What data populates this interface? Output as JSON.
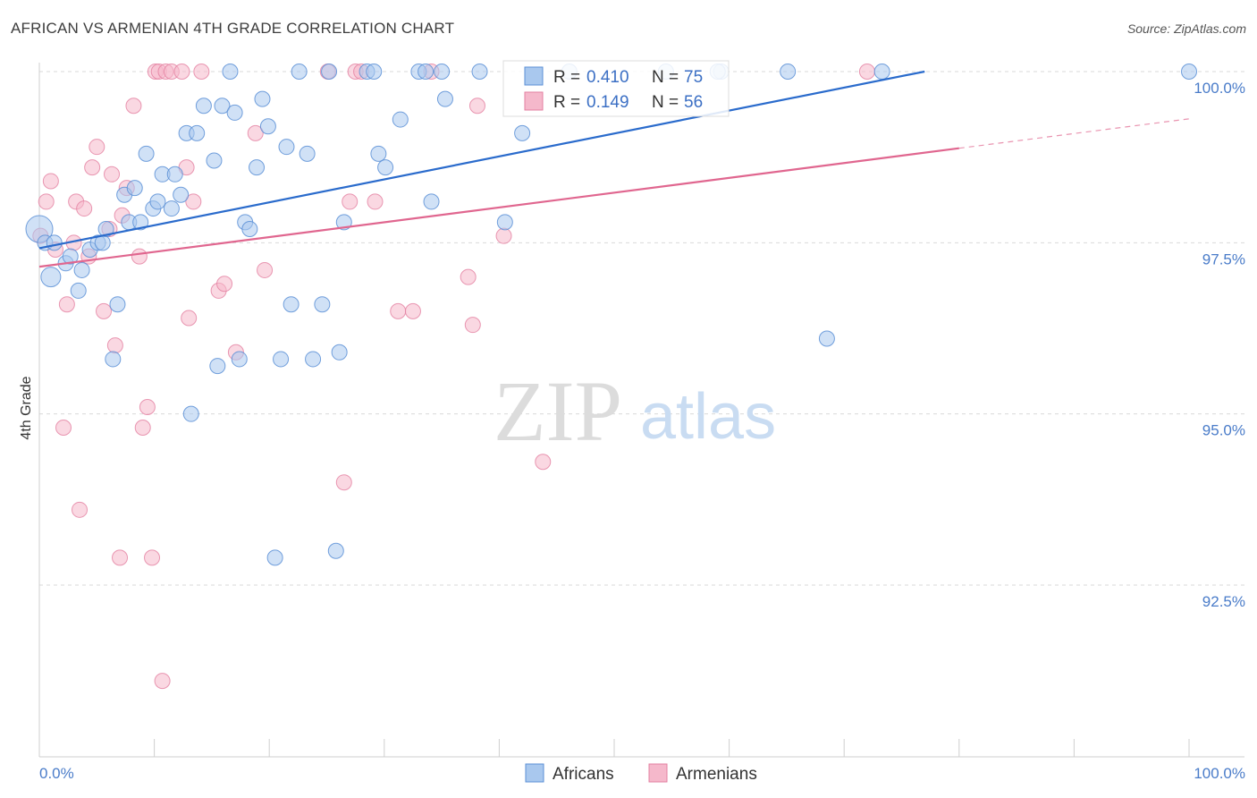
{
  "title": "AFRICAN VS ARMENIAN 4TH GRADE CORRELATION CHART",
  "source": "Source: ZipAtlas.com",
  "watermark": {
    "part1": "ZIP",
    "part2": "atlas"
  },
  "legend": {
    "series1": {
      "r_label": "R =",
      "r_value": "0.410",
      "n_label": "N =",
      "n_value": "75"
    },
    "series2": {
      "r_label": "R =",
      "r_value": "0.149",
      "n_label": "N =",
      "n_value": "56"
    }
  },
  "bottom_legend": [
    "Africans",
    "Armenians"
  ],
  "colors": {
    "blue_fill": "#a9c8ee",
    "blue_stroke": "#5b8fd6",
    "blue_line": "#2a6bcc",
    "pink_fill": "#f5b8cb",
    "pink_stroke": "#e37fa0",
    "pink_line": "#e0668f",
    "grid": "#d9d9d9",
    "tick_text": "#4a7cc9"
  },
  "chart_data": {
    "type": "scatter",
    "xlabel": "",
    "ylabel": "4th Grade",
    "xlim": [
      0,
      100
    ],
    "ylim": [
      90.0,
      100.5
    ],
    "x_tick_labels": [
      "0.0%",
      "100.0%"
    ],
    "y_ticks": [
      92.5,
      95.0,
      97.5,
      100.0
    ],
    "y_tick_labels": [
      "92.5%",
      "95.0%",
      "97.5%",
      "100.0%"
    ],
    "legend_position": "top-center",
    "grid": true,
    "series": [
      {
        "name": "Africans",
        "color": "#5b8fd6",
        "r": 0.41,
        "n": 75,
        "trend": {
          "x": [
            0,
            77
          ],
          "y": [
            97.42,
            100.0
          ]
        },
        "points": [
          [
            0.0,
            97.7
          ],
          [
            0.5,
            97.5
          ],
          [
            1.3,
            97.5
          ],
          [
            1.0,
            97.0
          ],
          [
            2.3,
            97.2
          ],
          [
            2.7,
            97.3
          ],
          [
            3.4,
            96.8
          ],
          [
            3.7,
            97.1
          ],
          [
            4.4,
            97.4
          ],
          [
            5.1,
            97.5
          ],
          [
            5.5,
            97.5
          ],
          [
            5.8,
            97.7
          ],
          [
            6.4,
            95.8
          ],
          [
            6.8,
            96.6
          ],
          [
            7.4,
            98.2
          ],
          [
            7.8,
            97.8
          ],
          [
            8.3,
            98.3
          ],
          [
            8.8,
            97.8
          ],
          [
            9.3,
            98.8
          ],
          [
            9.9,
            98.0
          ],
          [
            10.3,
            98.1
          ],
          [
            10.7,
            98.5
          ],
          [
            11.5,
            98.0
          ],
          [
            11.8,
            98.5
          ],
          [
            12.3,
            98.2
          ],
          [
            12.8,
            99.1
          ],
          [
            13.2,
            95.0
          ],
          [
            13.7,
            99.1
          ],
          [
            14.3,
            99.5
          ],
          [
            15.2,
            98.7
          ],
          [
            15.5,
            95.7
          ],
          [
            15.9,
            99.5
          ],
          [
            16.6,
            100.0
          ],
          [
            17.0,
            99.4
          ],
          [
            17.4,
            95.8
          ],
          [
            17.9,
            97.8
          ],
          [
            18.3,
            97.7
          ],
          [
            18.9,
            98.6
          ],
          [
            19.4,
            99.6
          ],
          [
            19.9,
            99.2
          ],
          [
            20.5,
            92.9
          ],
          [
            21.0,
            95.8
          ],
          [
            21.5,
            98.9
          ],
          [
            21.9,
            96.6
          ],
          [
            22.6,
            100.0
          ],
          [
            23.3,
            98.8
          ],
          [
            23.8,
            95.8
          ],
          [
            24.6,
            96.6
          ],
          [
            25.2,
            100.0
          ],
          [
            25.8,
            93.0
          ],
          [
            26.1,
            95.9
          ],
          [
            26.5,
            97.8
          ],
          [
            28.5,
            100.0
          ],
          [
            29.1,
            100.0
          ],
          [
            29.5,
            98.8
          ],
          [
            30.1,
            98.6
          ],
          [
            31.4,
            99.3
          ],
          [
            33.0,
            100.0
          ],
          [
            33.6,
            100.0
          ],
          [
            34.1,
            98.1
          ],
          [
            35.0,
            100.0
          ],
          [
            35.3,
            99.6
          ],
          [
            38.3,
            100.0
          ],
          [
            40.5,
            97.8
          ],
          [
            42.0,
            99.1
          ],
          [
            46.1,
            100.0
          ],
          [
            54.5,
            100.0
          ],
          [
            59.3,
            100.0
          ],
          [
            59.0,
            100.0
          ],
          [
            65.1,
            100.0
          ],
          [
            68.5,
            96.1
          ],
          [
            73.3,
            100.0
          ],
          [
            100.0,
            100.0
          ]
        ]
      },
      {
        "name": "Armenians",
        "color": "#e37fa0",
        "r": 0.149,
        "n": 56,
        "trend": {
          "x": [
            0,
            80
          ],
          "y": [
            97.15,
            98.88
          ],
          "dashed_to": {
            "x": 100,
            "y": 99.31
          }
        },
        "points": [
          [
            0.1,
            97.6
          ],
          [
            0.6,
            98.1
          ],
          [
            1.0,
            98.4
          ],
          [
            1.4,
            97.4
          ],
          [
            2.1,
            94.8
          ],
          [
            2.4,
            96.6
          ],
          [
            3.0,
            97.5
          ],
          [
            3.2,
            98.1
          ],
          [
            3.5,
            93.6
          ],
          [
            3.9,
            98.0
          ],
          [
            4.3,
            97.3
          ],
          [
            4.6,
            98.6
          ],
          [
            5.0,
            98.9
          ],
          [
            5.6,
            96.5
          ],
          [
            6.1,
            97.7
          ],
          [
            6.3,
            98.5
          ],
          [
            6.6,
            96.0
          ],
          [
            7.0,
            92.9
          ],
          [
            7.2,
            97.9
          ],
          [
            7.6,
            98.3
          ],
          [
            8.2,
            99.5
          ],
          [
            8.7,
            97.3
          ],
          [
            9.0,
            94.8
          ],
          [
            9.4,
            95.1
          ],
          [
            9.8,
            92.9
          ],
          [
            10.1,
            100.0
          ],
          [
            10.4,
            100.0
          ],
          [
            10.7,
            91.1
          ],
          [
            11.0,
            100.0
          ],
          [
            11.5,
            100.0
          ],
          [
            12.4,
            100.0
          ],
          [
            12.8,
            98.6
          ],
          [
            13.0,
            96.4
          ],
          [
            13.4,
            98.1
          ],
          [
            14.1,
            100.0
          ],
          [
            15.6,
            96.8
          ],
          [
            16.1,
            96.9
          ],
          [
            17.1,
            95.9
          ],
          [
            18.8,
            99.1
          ],
          [
            19.6,
            97.1
          ],
          [
            25.1,
            100.0
          ],
          [
            26.5,
            94.0
          ],
          [
            27.0,
            98.1
          ],
          [
            27.5,
            100.0
          ],
          [
            28.0,
            100.0
          ],
          [
            29.2,
            98.1
          ],
          [
            31.2,
            96.5
          ],
          [
            32.5,
            96.5
          ],
          [
            34.1,
            100.0
          ],
          [
            37.3,
            97.0
          ],
          [
            37.7,
            96.3
          ],
          [
            38.1,
            99.5
          ],
          [
            40.4,
            97.6
          ],
          [
            43.8,
            94.3
          ],
          [
            72.0,
            100.0
          ]
        ]
      }
    ]
  }
}
